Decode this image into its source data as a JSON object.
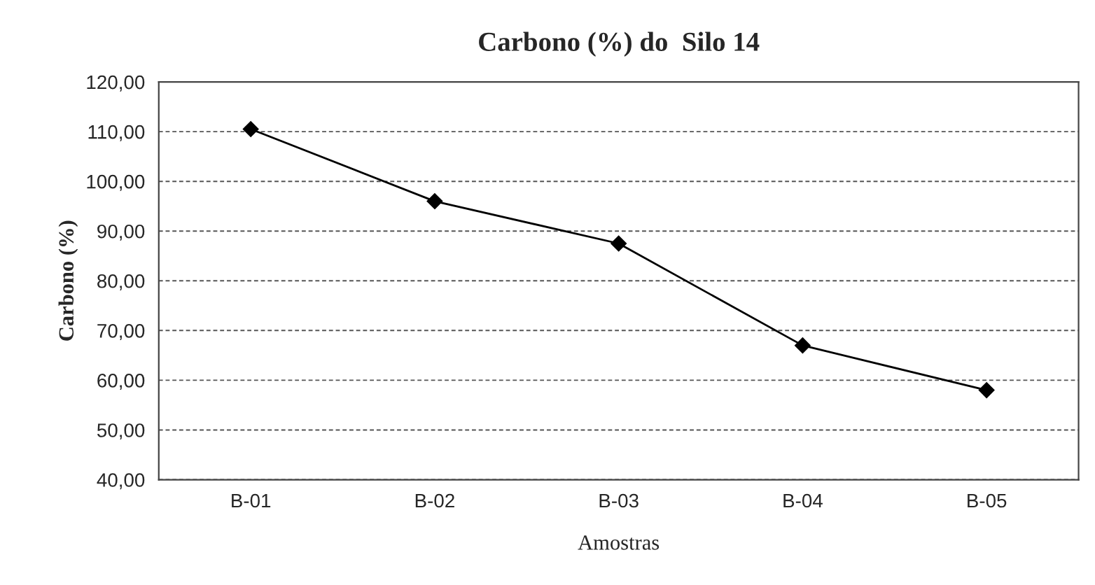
{
  "chart_data": {
    "type": "line",
    "title": "Carbono (%) do  Silo 14",
    "xlabel": "Amostras",
    "ylabel": "Carbono (%)",
    "categories": [
      "B-01",
      "B-02",
      "B-03",
      "B-04",
      "B-05"
    ],
    "series": [
      {
        "color": "#000000",
        "values": [
          110.5,
          96,
          87.5,
          67,
          58
        ]
      }
    ],
    "ylim": [
      40,
      120
    ],
    "yticks": [
      {
        "value": 40,
        "label": "40,00"
      },
      {
        "value": 50,
        "label": "50,00"
      },
      {
        "value": 60,
        "label": "60,00"
      },
      {
        "value": 70,
        "label": "70,00"
      },
      {
        "value": 80,
        "label": "80,00"
      },
      {
        "value": 90,
        "label": "90,00"
      },
      {
        "value": 100,
        "label": "100,00"
      },
      {
        "value": 110,
        "label": "110,00"
      },
      {
        "value": 120,
        "label": "120,00"
      }
    ],
    "grid": "y",
    "marker": "diamond",
    "line_style": "solid",
    "legend": false
  }
}
